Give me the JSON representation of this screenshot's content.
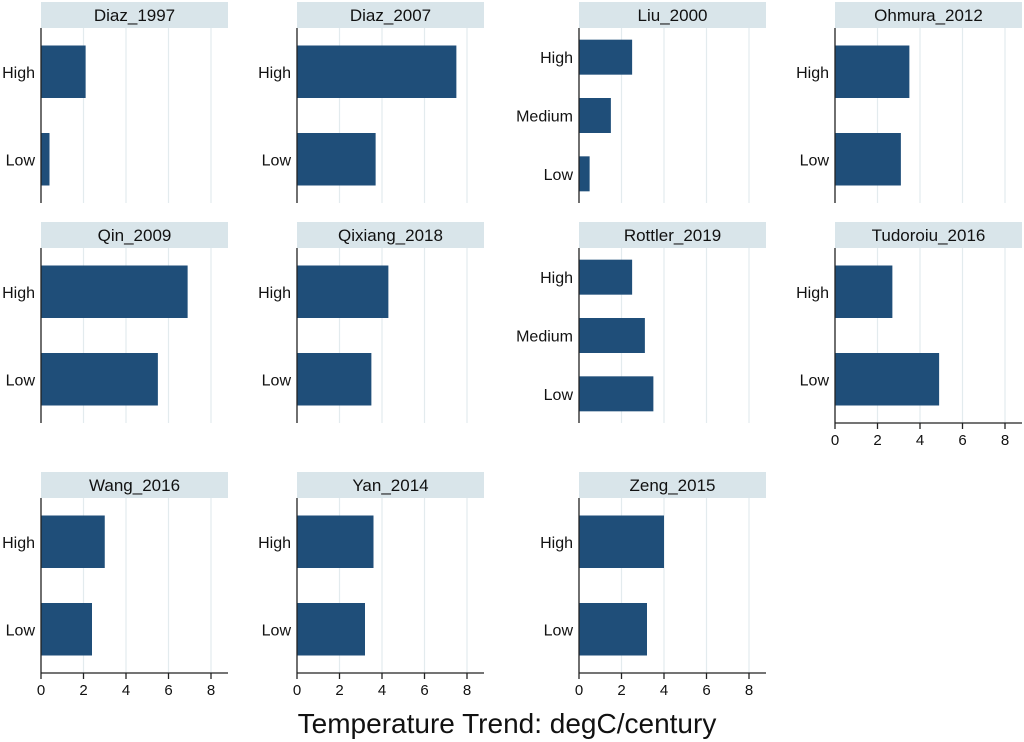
{
  "chart_data": {
    "type": "bar",
    "orientation": "horizontal",
    "xlabel": "Temperature Trend: degC/century",
    "ylabel": "",
    "xlim": [
      0,
      8.8
    ],
    "xticks": [
      0,
      2,
      4,
      6,
      8
    ],
    "grid": true,
    "colors": {
      "bar": "#1f4e79",
      "strip_bg": "#d9e5ea",
      "grid": "#e3ebee",
      "axis": "#222222",
      "text": "#111111"
    },
    "panels": [
      {
        "title": "Diaz_1997",
        "categories": [
          "High",
          "Low"
        ],
        "values": [
          2.1,
          0.4
        ]
      },
      {
        "title": "Diaz_2007",
        "categories": [
          "High",
          "Low"
        ],
        "values": [
          7.5,
          3.7
        ]
      },
      {
        "title": "Liu_2000",
        "categories": [
          "High",
          "Medium",
          "Low"
        ],
        "values": [
          2.5,
          1.5,
          0.5
        ]
      },
      {
        "title": "Ohmura_2012",
        "categories": [
          "High",
          "Low"
        ],
        "values": [
          3.5,
          3.1
        ]
      },
      {
        "title": "Qin_2009",
        "categories": [
          "High",
          "Low"
        ],
        "values": [
          6.9,
          5.5
        ]
      },
      {
        "title": "Qixiang_2018",
        "categories": [
          "High",
          "Low"
        ],
        "values": [
          4.3,
          3.5
        ]
      },
      {
        "title": "Rottler_2019",
        "categories": [
          "High",
          "Medium",
          "Low"
        ],
        "values": [
          2.5,
          3.1,
          3.5
        ]
      },
      {
        "title": "Tudoroiu_2016",
        "categories": [
          "High",
          "Low"
        ],
        "values": [
          2.7,
          4.9
        ]
      },
      {
        "title": "Wang_2016",
        "categories": [
          "High",
          "Low"
        ],
        "values": [
          3.0,
          2.4
        ]
      },
      {
        "title": "Yan_2014",
        "categories": [
          "High",
          "Low"
        ],
        "values": [
          3.6,
          3.2
        ]
      },
      {
        "title": "Zeng_2015",
        "categories": [
          "High",
          "Low"
        ],
        "values": [
          4.0,
          3.2
        ]
      }
    ]
  }
}
